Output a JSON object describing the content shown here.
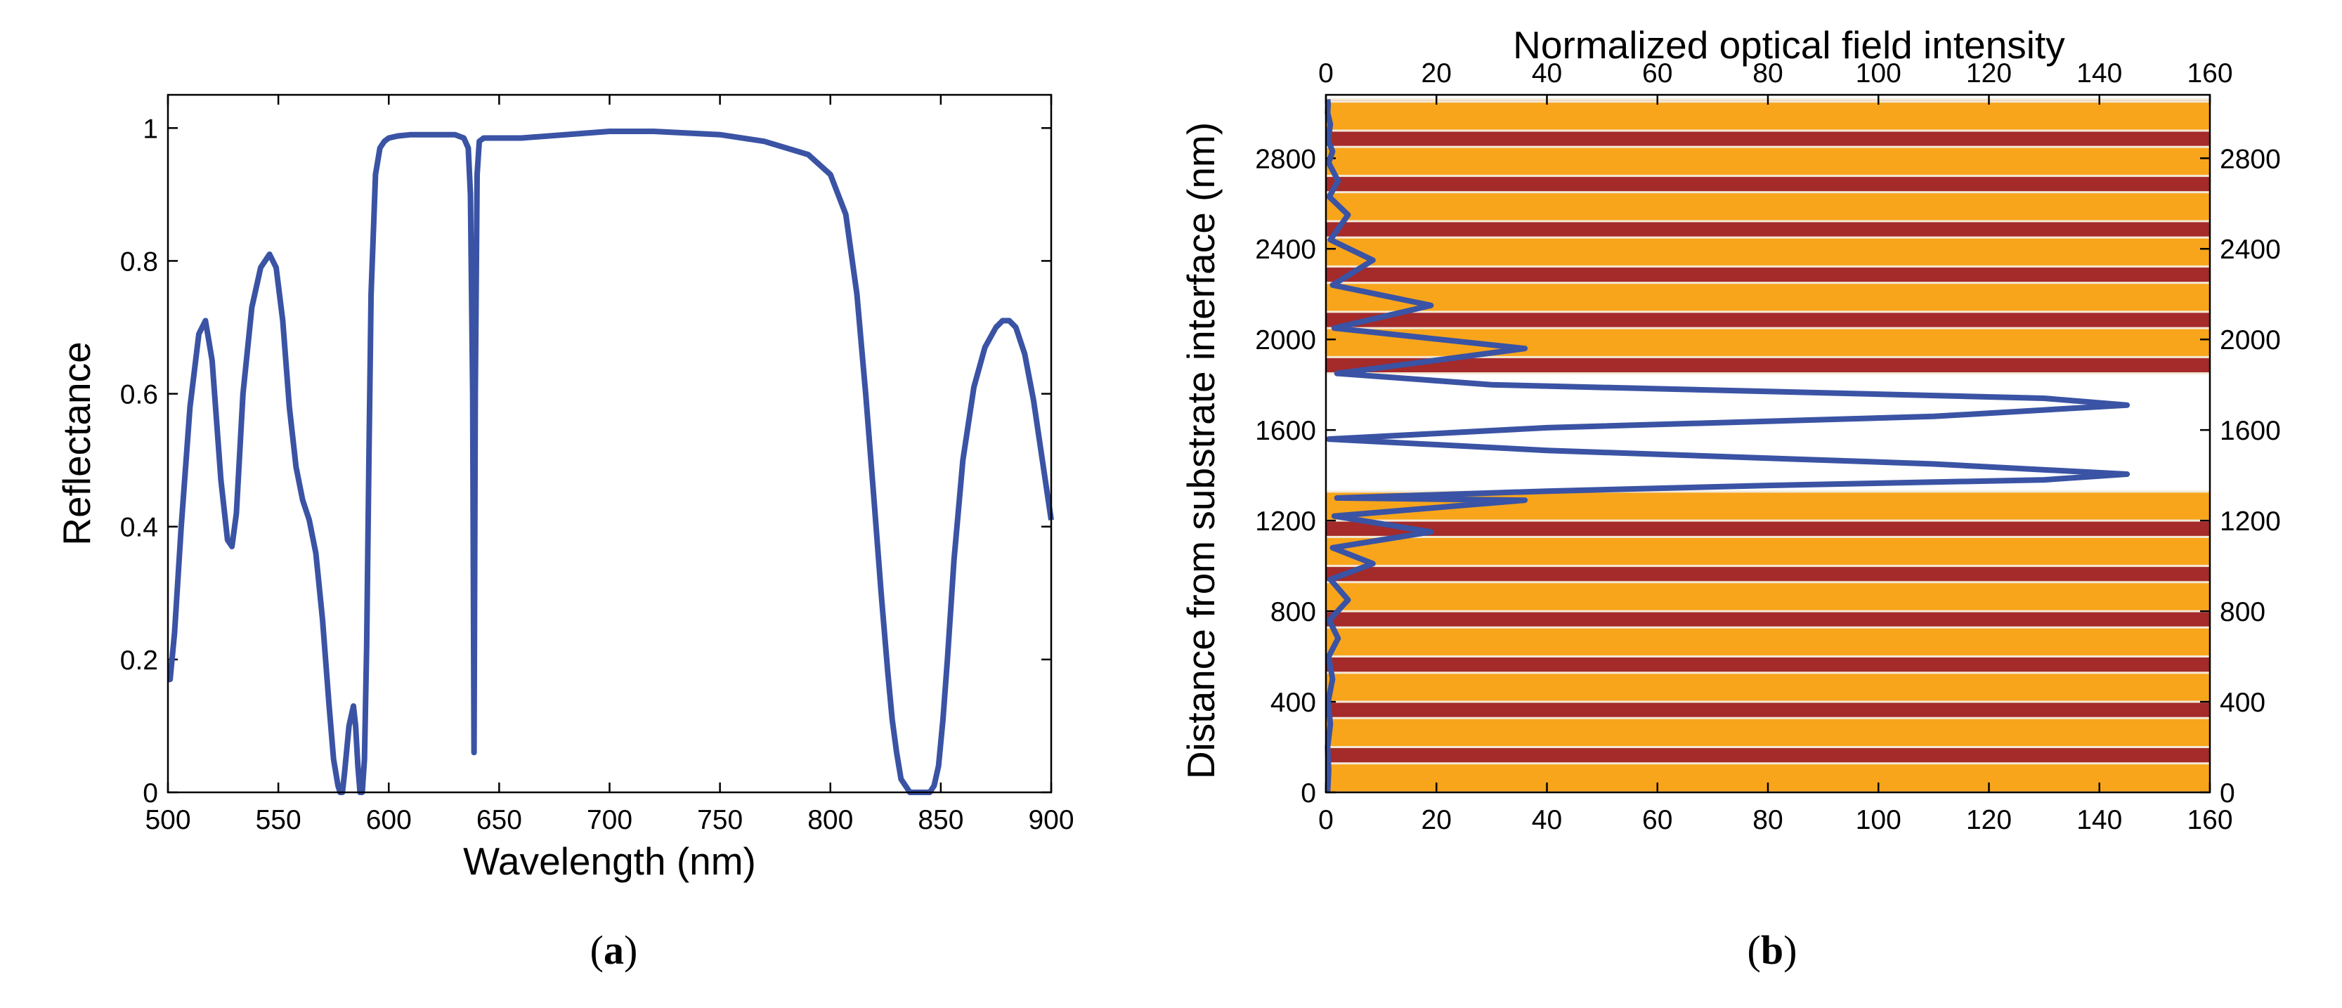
{
  "colors": {
    "line": "#3a53a4",
    "layer_dark": "#a52a2a",
    "layer_light": "#f8a51c",
    "separator": "#f3e9d6"
  },
  "chart_data": [
    {
      "type": "line",
      "panel_label": "(a)",
      "title": "",
      "xlabel": "Wavelength (nm)",
      "ylabel": "Reflectance",
      "xlim": [
        500,
        900
      ],
      "ylim": [
        0,
        1.05
      ],
      "xticks": [
        500,
        550,
        600,
        650,
        700,
        750,
        800,
        850,
        900
      ],
      "yticks": [
        0,
        0.2,
        0.4,
        0.6,
        0.8,
        1
      ],
      "ytick_labels": [
        "0",
        "0.2",
        "0.4",
        "0.6",
        "0.8",
        "1"
      ],
      "grid": false,
      "series": [
        {
          "x": [
            500,
            501,
            503,
            506,
            510,
            514,
            517,
            520,
            524,
            527,
            529,
            531,
            534,
            538,
            542,
            546,
            549,
            552,
            555,
            558,
            561,
            564,
            567,
            570,
            573,
            575,
            577,
            578,
            579,
            580,
            582,
            584,
            585,
            586,
            587,
            588,
            589,
            590,
            591,
            592,
            594,
            596,
            598,
            600,
            604,
            610,
            620,
            630,
            634,
            636,
            637,
            638,
            638.6,
            639.2,
            640,
            641,
            643,
            646,
            650,
            660,
            680,
            700,
            720,
            750,
            770,
            790,
            800,
            807,
            812,
            816,
            820,
            823,
            826,
            828,
            830,
            832,
            834,
            836,
            838,
            842,
            845,
            847,
            849,
            851,
            853,
            856,
            860,
            865,
            870,
            875,
            878,
            881,
            884,
            888,
            892,
            896,
            900
          ],
          "y": [
            0.17,
            0.17,
            0.24,
            0.4,
            0.58,
            0.69,
            0.71,
            0.65,
            0.47,
            0.38,
            0.37,
            0.42,
            0.6,
            0.73,
            0.79,
            0.81,
            0.79,
            0.71,
            0.58,
            0.49,
            0.44,
            0.41,
            0.36,
            0.26,
            0.13,
            0.05,
            0.01,
            0.0,
            0.0,
            0.03,
            0.1,
            0.13,
            0.1,
            0.04,
            0.0,
            0.0,
            0.05,
            0.22,
            0.5,
            0.75,
            0.93,
            0.97,
            0.98,
            0.985,
            0.988,
            0.99,
            0.99,
            0.99,
            0.985,
            0.97,
            0.9,
            0.6,
            0.06,
            0.6,
            0.93,
            0.98,
            0.985,
            0.985,
            0.985,
            0.985,
            0.99,
            0.995,
            0.995,
            0.99,
            0.98,
            0.96,
            0.93,
            0.87,
            0.75,
            0.6,
            0.43,
            0.3,
            0.18,
            0.11,
            0.06,
            0.02,
            0.01,
            0.0,
            0.0,
            0.0,
            0.0,
            0.01,
            0.04,
            0.11,
            0.2,
            0.35,
            0.5,
            0.61,
            0.67,
            0.7,
            0.71,
            0.71,
            0.7,
            0.66,
            0.59,
            0.5,
            0.41
          ]
        }
      ]
    },
    {
      "type": "line",
      "panel_label": "(b)",
      "title": "",
      "xlabel": "Normalized optical field intensity",
      "ylabel": "Distance from substrate interface (nm)",
      "xlim": [
        0,
        160
      ],
      "ylim": [
        0,
        3080
      ],
      "xticks": [
        0,
        20,
        40,
        60,
        80,
        100,
        120,
        140,
        160
      ],
      "yticks": [
        0,
        400,
        800,
        1200,
        1600,
        2000,
        2400,
        2800
      ],
      "grid": false,
      "layers": {
        "lower_stack_top": 1240,
        "upper_stack_bottom": 1850,
        "stack_top": 3060,
        "period": 200,
        "dark_fraction": 0.36
      },
      "series": [
        {
          "x": [
            0.3,
            0.5,
            0.3,
            0.8,
            0.4,
            1.2,
            0.5,
            2.2,
            0.6,
            4,
            0.8,
            8.5,
            1.2,
            19,
            1.5,
            36,
            2,
            40,
            80,
            130,
            145,
            110,
            40,
            0.5,
            40,
            110,
            145,
            130,
            80,
            30,
            2,
            36,
            1.5,
            19,
            1.2,
            8.5,
            0.8,
            4,
            0.6,
            2.2,
            0.5,
            1.2,
            0.4,
            0.8,
            0.3,
            0.4,
            0.3
          ],
          "y": [
            0,
            100,
            200,
            300,
            400,
            500,
            600,
            680,
            760,
            850,
            940,
            1010,
            1080,
            1150,
            1220,
            1290,
            1300,
            1330,
            1355,
            1380,
            1405,
            1450,
            1510,
            1560,
            1610,
            1660,
            1710,
            1740,
            1770,
            1800,
            1850,
            1960,
            2050,
            2150,
            2240,
            2350,
            2440,
            2550,
            2630,
            2700,
            2780,
            2830,
            2880,
            2950,
            3000,
            3040,
            3060
          ]
        }
      ]
    }
  ]
}
